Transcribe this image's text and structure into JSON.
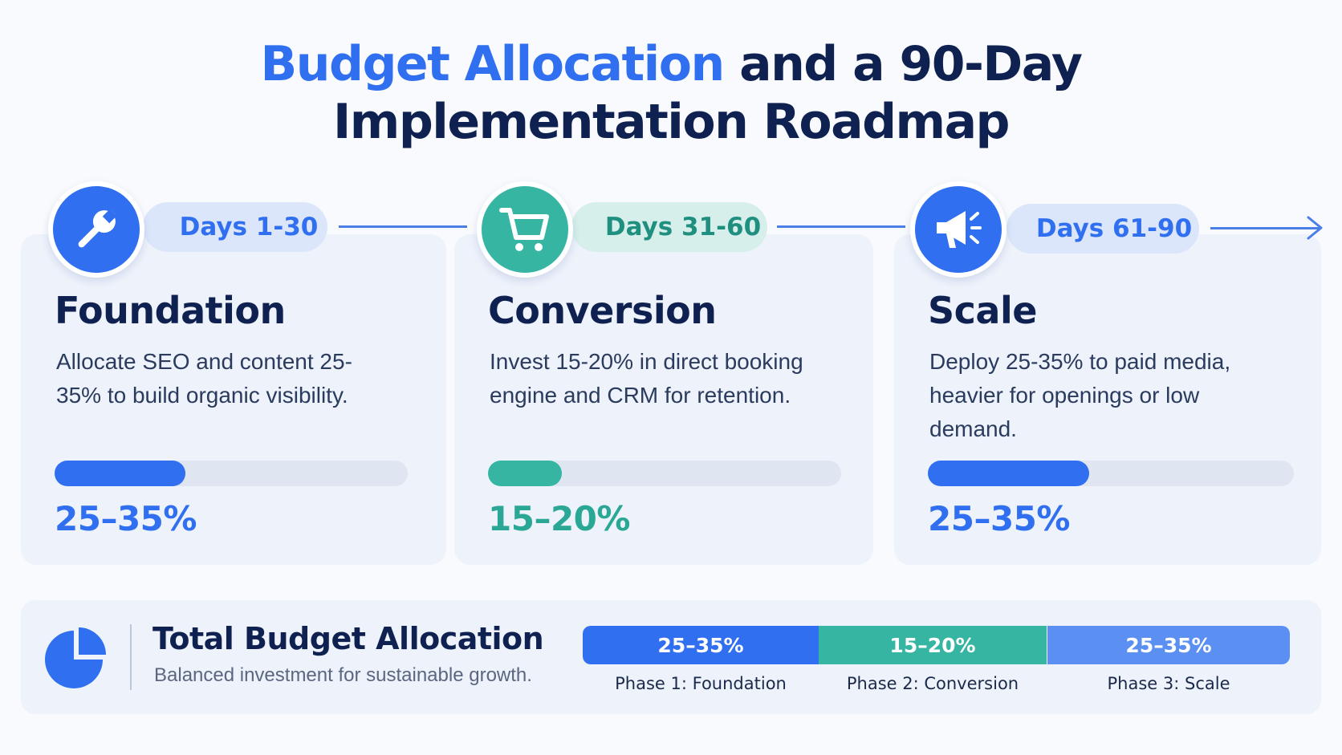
{
  "title": {
    "accent": "Budget Allocation",
    "line1_rest": " and a 90-Day",
    "line2": "Implementation Roadmap"
  },
  "colors": {
    "blue": "#2f6ff0",
    "teal": "#35b5a2",
    "light_blue": "#5b8ff2",
    "navy": "#0f2150"
  },
  "phases": [
    {
      "days": "Days 1-30",
      "icon": "wrench-icon",
      "heading": "Foundation",
      "description": "Allocate SEO and content 25-35% to build organic visibility.",
      "percent_label": "25–35%",
      "bar_fill_fraction": 0.37
    },
    {
      "days": "Days 31-60",
      "icon": "shopping-cart-icon",
      "heading": "Conversion",
      "description": "Invest 15-20% in direct booking engine and CRM for retention.",
      "percent_label": "15–20%",
      "bar_fill_fraction": 0.21
    },
    {
      "days": "Days 61-90",
      "icon": "megaphone-icon",
      "heading": "Scale",
      "description": "Deploy 25-35% to paid media, heavier for openings or low demand.",
      "percent_label": "25–35%",
      "bar_fill_fraction": 0.44
    }
  ],
  "summary": {
    "icon": "pie-chart-icon",
    "title": "Total Budget Allocation",
    "subtitle": "Balanced investment for sustainable growth.",
    "segments": [
      {
        "value": "25–35%",
        "label": "Phase 1: Foundation"
      },
      {
        "value": "15–20%",
        "label": "Phase 2: Conversion"
      },
      {
        "value": "25–35%",
        "label": "Phase 3: Scale"
      }
    ]
  }
}
